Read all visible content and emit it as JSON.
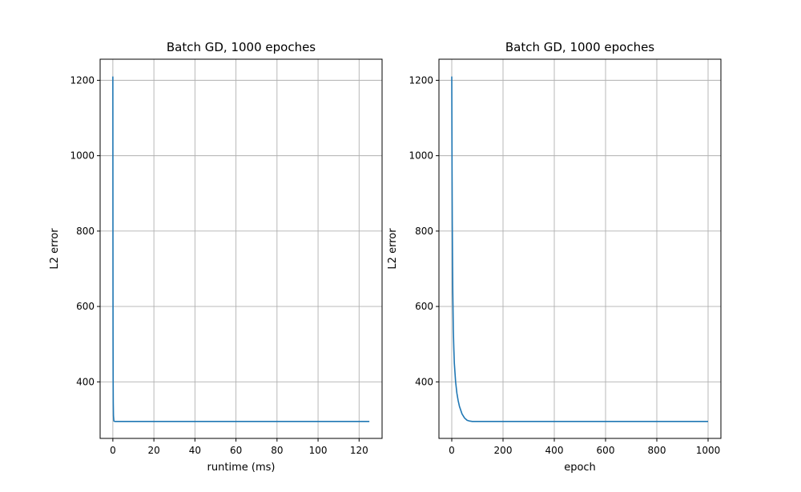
{
  "chart_data": [
    {
      "type": "line",
      "title": "Batch GD, 1000 epoches",
      "xlabel": "runtime (ms)",
      "ylabel": "L2 error",
      "xlim": [
        -6.2,
        131.2
      ],
      "ylim": [
        250,
        1256
      ],
      "xticks": [
        0,
        20,
        40,
        60,
        80,
        100,
        120
      ],
      "xtick_labels": [
        "0",
        "20",
        "40",
        "60",
        "80",
        "100",
        "120"
      ],
      "yticks": [
        400,
        600,
        800,
        1000,
        1200
      ],
      "ytick_labels": [
        "400",
        "600",
        "800",
        "1000",
        "1200"
      ],
      "grid": true,
      "color": "#1f77b4",
      "series": [
        {
          "x": [
            0,
            0.05,
            0.1,
            0.15,
            0.2,
            0.3,
            0.5,
            1,
            5,
            20,
            60,
            100,
            125
          ],
          "y": [
            1210,
            800,
            520,
            400,
            345,
            310,
            296,
            295,
            295,
            295,
            295,
            295,
            295
          ]
        }
      ]
    },
    {
      "type": "line",
      "title": "Batch GD, 1000 epoches",
      "xlabel": "epoch",
      "ylabel": "L2 error",
      "xlim": [
        -50,
        1050
      ],
      "ylim": [
        250,
        1256
      ],
      "xticks": [
        0,
        200,
        400,
        600,
        800,
        1000
      ],
      "xtick_labels": [
        "0",
        "200",
        "400",
        "600",
        "800",
        "1000"
      ],
      "yticks": [
        400,
        600,
        800,
        1000,
        1200
      ],
      "ytick_labels": [
        "400",
        "600",
        "800",
        "1000",
        "1200"
      ],
      "grid": true,
      "color": "#1f77b4",
      "series": [
        {
          "x": [
            0,
            1,
            2,
            3,
            4,
            6,
            8,
            10,
            15,
            20,
            25,
            30,
            40,
            50,
            60,
            70,
            80,
            100,
            200,
            400,
            600,
            800,
            1000
          ],
          "y": [
            1210,
            980,
            820,
            720,
            640,
            540,
            490,
            450,
            400,
            370,
            350,
            335,
            315,
            304,
            298,
            296,
            295,
            295,
            295,
            295,
            295,
            295,
            295
          ]
        }
      ]
    }
  ]
}
